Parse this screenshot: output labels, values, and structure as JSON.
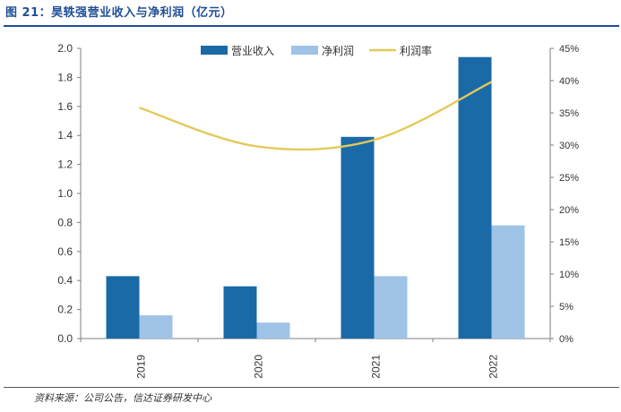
{
  "figure_title": "图 21：昊轶强营业收入与净利润（亿元）",
  "source_note": "资料来源：公司公告，信达证券研发中心",
  "colors": {
    "revenue": "#1a6aa7",
    "net_profit": "#9fc3e7",
    "margin": "#e4c95a",
    "title": "#1f4e96"
  },
  "chart_data": {
    "type": "bar",
    "title": "",
    "categories": [
      "2019",
      "2020",
      "2021",
      "2022"
    ],
    "series": [
      {
        "name": "营业收入",
        "kind": "bar",
        "axis": "left",
        "values": [
          0.43,
          0.36,
          1.39,
          1.94
        ]
      },
      {
        "name": "净利润",
        "kind": "bar",
        "axis": "left",
        "values": [
          0.16,
          0.11,
          0.43,
          0.78
        ]
      },
      {
        "name": "利润率",
        "kind": "line",
        "axis": "right",
        "values": [
          35.8,
          29.8,
          30.8,
          39.8
        ]
      }
    ],
    "ylim_left": [
      0,
      2.0
    ],
    "yticks_left": [
      "0.0",
      "0.2",
      "0.4",
      "0.6",
      "0.8",
      "1.0",
      "1.2",
      "1.4",
      "1.6",
      "1.8",
      "2.0"
    ],
    "ylim_right": [
      0,
      45
    ],
    "yticks_right": [
      "0%",
      "5%",
      "10%",
      "15%",
      "20%",
      "25%",
      "30%",
      "35%",
      "40%",
      "45%"
    ],
    "legend_position": "top-center",
    "grid": false
  }
}
